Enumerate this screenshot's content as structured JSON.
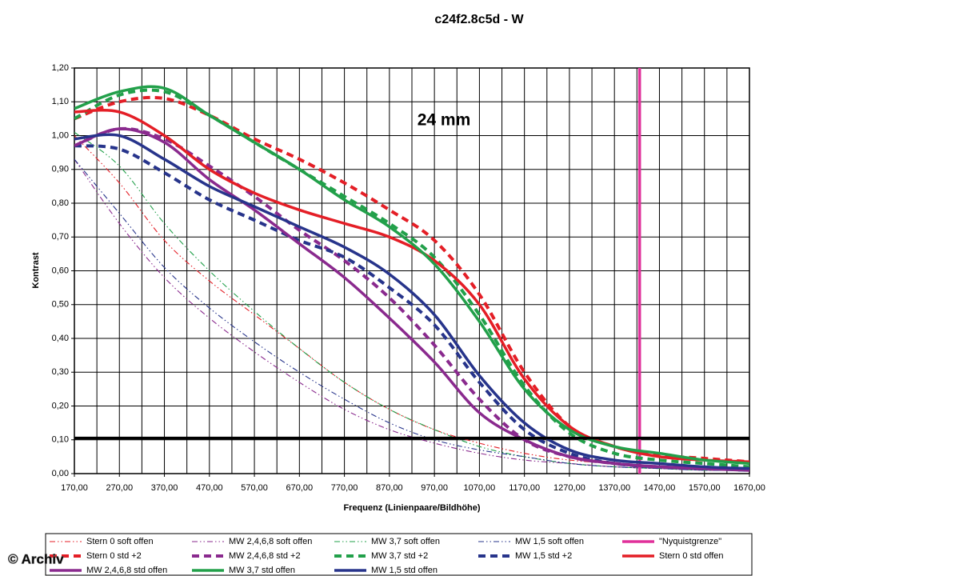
{
  "chart_data": {
    "type": "line",
    "title": "c24f2.8c5d - W",
    "annotation": "24 mm",
    "x_label": "Frequenz (Linienpaare/Bildhöhe)",
    "y_label": "Kontrast",
    "watermark": "© Archiv",
    "x": [
      170,
      270,
      370,
      470,
      570,
      670,
      770,
      870,
      970,
      1070,
      1170,
      1270,
      1370,
      1470,
      1570,
      1670
    ],
    "xlim": [
      170,
      1670
    ],
    "ylim": [
      0,
      1.2
    ],
    "grid": true,
    "xticks": [
      {
        "value": 170,
        "label": "170,00"
      },
      {
        "value": 270,
        "label": "270,00"
      },
      {
        "value": 370,
        "label": "370,00"
      },
      {
        "value": 470,
        "label": "470,00"
      },
      {
        "value": 570,
        "label": "570,00"
      },
      {
        "value": 670,
        "label": "670,00"
      },
      {
        "value": 770,
        "label": "770,00"
      },
      {
        "value": 870,
        "label": "870,00"
      },
      {
        "value": 970,
        "label": "970,00"
      },
      {
        "value": 1070,
        "label": "1070,00"
      },
      {
        "value": 1170,
        "label": "1170,00"
      },
      {
        "value": 1270,
        "label": "1270,00"
      },
      {
        "value": 1370,
        "label": "1370,00"
      },
      {
        "value": 1470,
        "label": "1470,00"
      },
      {
        "value": 1570,
        "label": "1570,00"
      },
      {
        "value": 1670,
        "label": "1670,00"
      }
    ],
    "x_minor_grid": [
      220,
      320,
      420,
      520,
      620,
      720,
      820,
      920,
      1020,
      1120,
      1220,
      1320,
      1420,
      1520,
      1620
    ],
    "yticks": [
      {
        "value": 0,
        "label": "0,00"
      },
      {
        "value": 0.1,
        "label": "0,10"
      },
      {
        "value": 0.2,
        "label": "0,20"
      },
      {
        "value": 0.3,
        "label": "0,30"
      },
      {
        "value": 0.4,
        "label": "0,40"
      },
      {
        "value": 0.5,
        "label": "0,50"
      },
      {
        "value": 0.6,
        "label": "0,60"
      },
      {
        "value": 0.7,
        "label": "0,70"
      },
      {
        "value": 0.8,
        "label": "0,80"
      },
      {
        "value": 0.9,
        "label": "0,90"
      },
      {
        "value": 1,
        "label": "1,00"
      },
      {
        "value": 1.1,
        "label": "1,10"
      },
      {
        "value": 1.2,
        "label": "1,20"
      }
    ],
    "reference_line": {
      "y": 0.105,
      "color": "#000000"
    },
    "series": [
      {
        "name": "Stern 0 soft offen",
        "color": "#e41e26",
        "style": "dashdotdot",
        "values": [
          1.0,
          0.86,
          0.69,
          0.57,
          0.47,
          0.37,
          0.27,
          0.19,
          0.13,
          0.09,
          0.06,
          0.04,
          0.03,
          0.02,
          0.015,
          0.01
        ]
      },
      {
        "name": "MW 2,4,6,8 soft offen",
        "color": "#8a2a8e",
        "style": "dashdotdot",
        "values": [
          0.93,
          0.74,
          0.58,
          0.46,
          0.36,
          0.27,
          0.19,
          0.13,
          0.09,
          0.06,
          0.04,
          0.03,
          0.02,
          0.015,
          0.01,
          0.01
        ]
      },
      {
        "name": "MW 3,7 soft offen",
        "color": "#22a04a",
        "style": "dashdotdot",
        "values": [
          1.01,
          0.91,
          0.74,
          0.6,
          0.48,
          0.37,
          0.27,
          0.19,
          0.13,
          0.08,
          0.05,
          0.03,
          0.02,
          0.015,
          0.01,
          0.01
        ]
      },
      {
        "name": "MW 1,5 soft offen",
        "color": "#27348b",
        "style": "dashdotdot",
        "values": [
          0.93,
          0.77,
          0.61,
          0.49,
          0.39,
          0.3,
          0.22,
          0.15,
          0.1,
          0.07,
          0.05,
          0.03,
          0.02,
          0.015,
          0.01,
          0.01
        ]
      },
      {
        "name": "\"Nyquistgrenze\"",
        "color": "#e0309a",
        "style": "vertical",
        "x_position": 1426
      },
      {
        "name": "Stern 0 std +2",
        "color": "#e41e26",
        "style": "dashed",
        "values": [
          1.05,
          1.1,
          1.11,
          1.06,
          0.99,
          0.93,
          0.86,
          0.78,
          0.69,
          0.53,
          0.3,
          0.14,
          0.08,
          0.055,
          0.045,
          0.035
        ]
      },
      {
        "name": "MW 2,4,6,8 std +2",
        "color": "#8a2a8e",
        "style": "dashed",
        "values": [
          0.97,
          1.02,
          0.99,
          0.91,
          0.82,
          0.72,
          0.63,
          0.52,
          0.38,
          0.22,
          0.1,
          0.05,
          0.03,
          0.02,
          0.015,
          0.01
        ]
      },
      {
        "name": "MW 3,7 std +2",
        "color": "#22a04a",
        "style": "dashed",
        "values": [
          1.05,
          1.12,
          1.13,
          1.06,
          0.98,
          0.9,
          0.82,
          0.74,
          0.64,
          0.47,
          0.26,
          0.12,
          0.06,
          0.04,
          0.03,
          0.02
        ]
      },
      {
        "name": "MW 1,5 std +2",
        "color": "#27348b",
        "style": "dashed",
        "values": [
          0.97,
          0.96,
          0.89,
          0.81,
          0.75,
          0.69,
          0.64,
          0.55,
          0.44,
          0.27,
          0.13,
          0.06,
          0.03,
          0.02,
          0.015,
          0.01
        ]
      },
      {
        "name": "Stern 0 std offen",
        "color": "#e41e26",
        "style": "solid",
        "values": [
          1.07,
          1.07,
          1.0,
          0.9,
          0.83,
          0.78,
          0.74,
          0.7,
          0.63,
          0.5,
          0.28,
          0.14,
          0.08,
          0.05,
          0.04,
          0.035
        ]
      },
      {
        "name": "MW 2,4,6,8 std offen",
        "color": "#8a2a8e",
        "style": "solid",
        "values": [
          0.97,
          1.02,
          0.98,
          0.87,
          0.78,
          0.68,
          0.58,
          0.46,
          0.33,
          0.18,
          0.1,
          0.05,
          0.03,
          0.02,
          0.015,
          0.01
        ]
      },
      {
        "name": "MW 3,7 std offen",
        "color": "#22a04a",
        "style": "solid",
        "values": [
          1.08,
          1.13,
          1.14,
          1.06,
          0.98,
          0.9,
          0.81,
          0.73,
          0.62,
          0.45,
          0.25,
          0.13,
          0.08,
          0.06,
          0.04,
          0.03
        ]
      },
      {
        "name": "MW 1,5 std offen",
        "color": "#27348b",
        "style": "solid",
        "values": [
          0.99,
          1.0,
          0.93,
          0.85,
          0.79,
          0.73,
          0.67,
          0.59,
          0.47,
          0.29,
          0.15,
          0.07,
          0.04,
          0.03,
          0.02,
          0.015
        ]
      }
    ]
  }
}
